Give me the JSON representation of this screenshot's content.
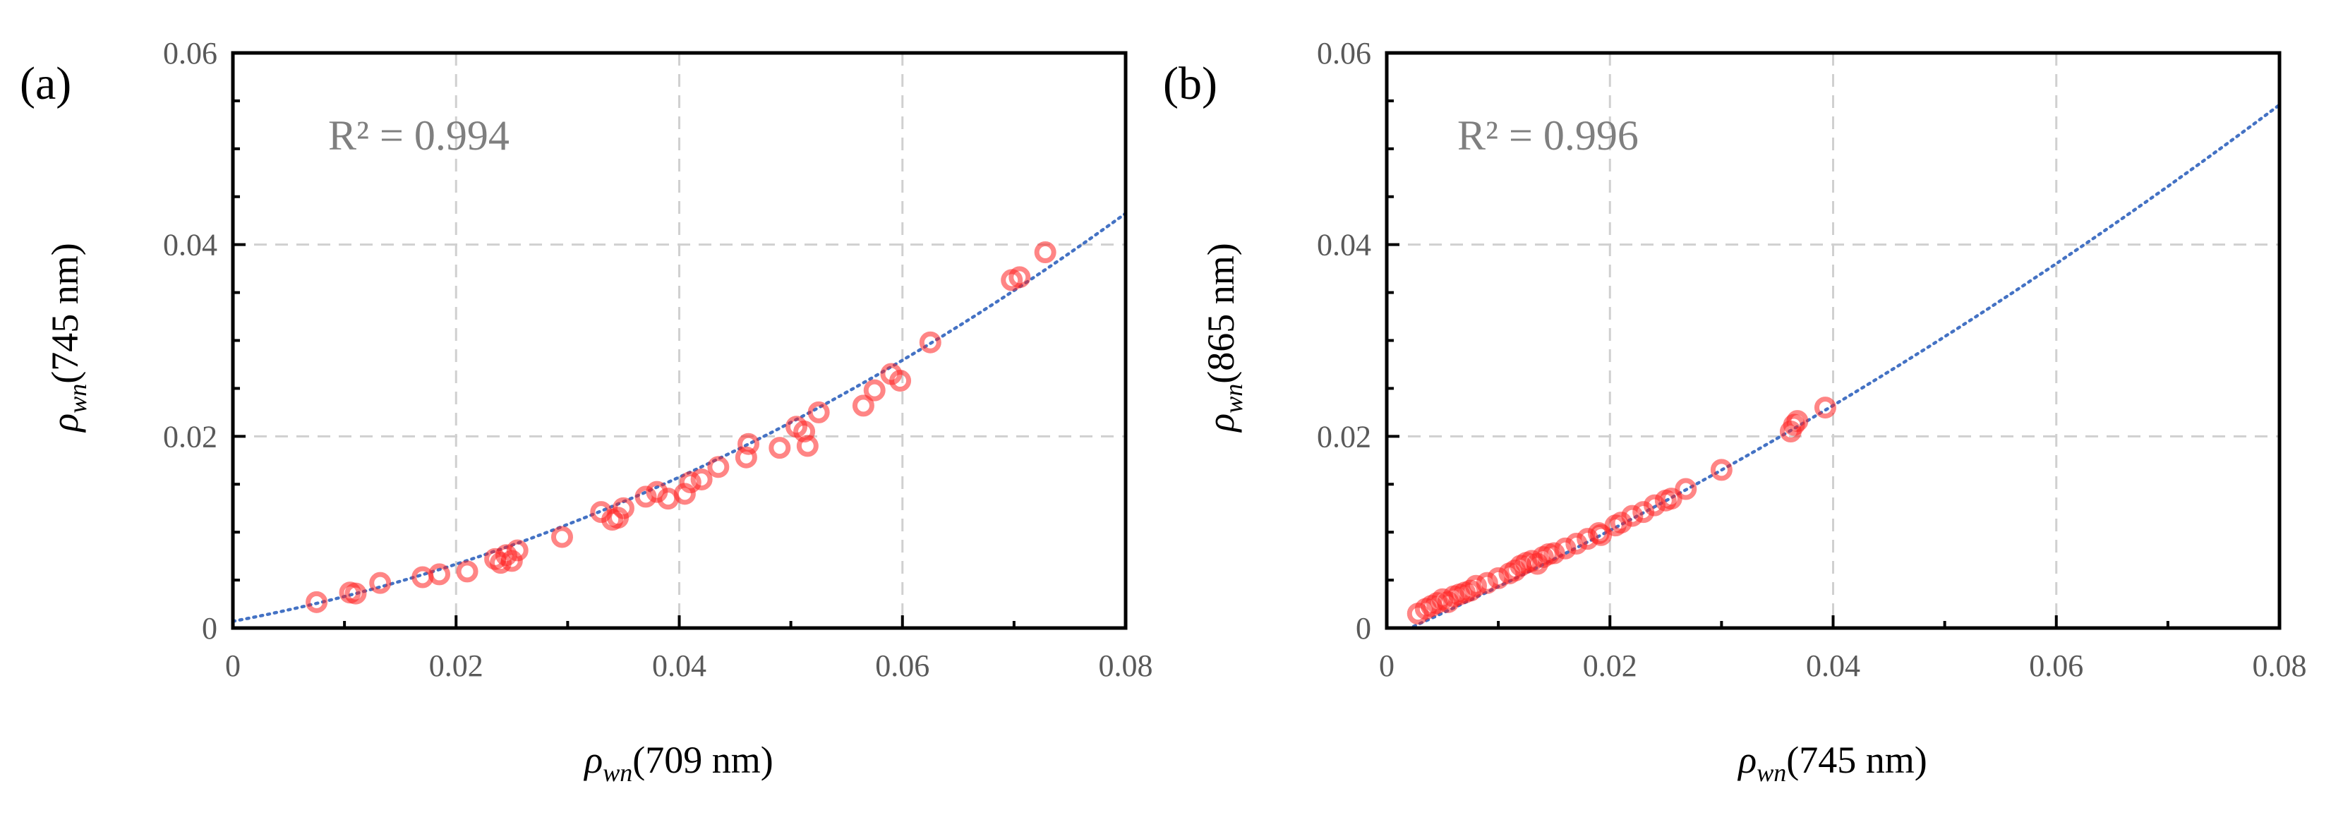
{
  "chart_data": [
    {
      "type": "scatter",
      "panel_label": "(a)",
      "r_squared": "R² = 0.994",
      "xlabel": {
        "symbol": "ρ",
        "sub": "wn",
        "rest": "(709 nm)"
      },
      "ylabel": {
        "symbol": "ρ",
        "sub": "wn",
        "rest": "(745 nm)"
      },
      "xlim": [
        0,
        0.08
      ],
      "ylim": [
        0,
        0.06
      ],
      "xticks": [
        "0",
        "0.02",
        "0.04",
        "0.06",
        "0.08"
      ],
      "yticks": [
        "0",
        "0.02",
        "0.04",
        "0.06"
      ],
      "grid": true,
      "marker_color": "#ff2020",
      "trend_color": "#4472c4",
      "trendline": {
        "kind": "polynomial",
        "coef": [
          0.0007,
          0.22,
          3.9
        ]
      },
      "points": [
        [
          0.0075,
          0.0027
        ],
        [
          0.0105,
          0.0037
        ],
        [
          0.011,
          0.0036
        ],
        [
          0.0132,
          0.0047
        ],
        [
          0.017,
          0.0053
        ],
        [
          0.0185,
          0.0056
        ],
        [
          0.021,
          0.0059
        ],
        [
          0.0235,
          0.0072
        ],
        [
          0.024,
          0.0068
        ],
        [
          0.0245,
          0.0076
        ],
        [
          0.025,
          0.007
        ],
        [
          0.0255,
          0.0081
        ],
        [
          0.0295,
          0.0095
        ],
        [
          0.033,
          0.0121
        ],
        [
          0.034,
          0.0113
        ],
        [
          0.0345,
          0.0115
        ],
        [
          0.035,
          0.0125
        ],
        [
          0.037,
          0.0137
        ],
        [
          0.038,
          0.0142
        ],
        [
          0.039,
          0.0135
        ],
        [
          0.0405,
          0.014
        ],
        [
          0.041,
          0.0152
        ],
        [
          0.042,
          0.0155
        ],
        [
          0.0435,
          0.0168
        ],
        [
          0.046,
          0.0178
        ],
        [
          0.0462,
          0.0192
        ],
        [
          0.049,
          0.0188
        ],
        [
          0.0505,
          0.021
        ],
        [
          0.0515,
          0.019
        ],
        [
          0.0512,
          0.0205
        ],
        [
          0.0525,
          0.0225
        ],
        [
          0.0565,
          0.0232
        ],
        [
          0.0575,
          0.0248
        ],
        [
          0.059,
          0.0265
        ],
        [
          0.0598,
          0.0258
        ],
        [
          0.0625,
          0.0298
        ],
        [
          0.0698,
          0.0363
        ],
        [
          0.0705,
          0.0366
        ],
        [
          0.0728,
          0.0392
        ]
      ]
    },
    {
      "type": "scatter",
      "panel_label": "(b)",
      "r_squared": "R² = 0.996",
      "xlabel": {
        "symbol": "ρ",
        "sub": "wn",
        "rest": "(745 nm)"
      },
      "ylabel": {
        "symbol": "ρ",
        "sub": "wn",
        "rest": "(865 nm)"
      },
      "xlim": [
        0,
        0.08
      ],
      "ylim": [
        0,
        0.06
      ],
      "xticks": [
        "0",
        "0.02",
        "0.04",
        "0.06",
        "0.08"
      ],
      "yticks": [
        "0",
        "0.02",
        "0.04",
        "0.06"
      ],
      "grid": true,
      "marker_color": "#ff2020",
      "trend_color": "#4472c4",
      "trendline": {
        "kind": "polynomial",
        "coef": [
          -0.0011,
          0.52,
          2.2
        ]
      },
      "points": [
        [
          0.0028,
          0.0015
        ],
        [
          0.0035,
          0.002
        ],
        [
          0.004,
          0.0023
        ],
        [
          0.0045,
          0.0026
        ],
        [
          0.005,
          0.003
        ],
        [
          0.0055,
          0.0027
        ],
        [
          0.006,
          0.0033
        ],
        [
          0.0065,
          0.0035
        ],
        [
          0.007,
          0.0037
        ],
        [
          0.0075,
          0.0039
        ],
        [
          0.008,
          0.0044
        ],
        [
          0.009,
          0.0047
        ],
        [
          0.01,
          0.0052
        ],
        [
          0.011,
          0.0057
        ],
        [
          0.0115,
          0.006
        ],
        [
          0.012,
          0.0065
        ],
        [
          0.0125,
          0.0068
        ],
        [
          0.013,
          0.007
        ],
        [
          0.0135,
          0.0067
        ],
        [
          0.014,
          0.0074
        ],
        [
          0.0145,
          0.0077
        ],
        [
          0.015,
          0.0078
        ],
        [
          0.016,
          0.0083
        ],
        [
          0.017,
          0.0088
        ],
        [
          0.018,
          0.0093
        ],
        [
          0.019,
          0.0099
        ],
        [
          0.0192,
          0.0097
        ],
        [
          0.0205,
          0.0107
        ],
        [
          0.021,
          0.011
        ],
        [
          0.022,
          0.0117
        ],
        [
          0.023,
          0.0121
        ],
        [
          0.024,
          0.0128
        ],
        [
          0.025,
          0.0133
        ],
        [
          0.0255,
          0.0135
        ],
        [
          0.0268,
          0.0145
        ],
        [
          0.03,
          0.0165
        ],
        [
          0.0362,
          0.0205
        ],
        [
          0.0365,
          0.0212
        ],
        [
          0.0368,
          0.0216
        ],
        [
          0.0393,
          0.023
        ]
      ]
    }
  ]
}
